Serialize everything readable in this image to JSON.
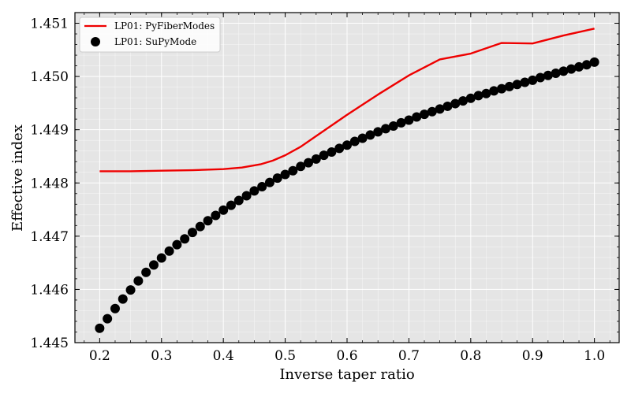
{
  "chart_data": {
    "type": "line",
    "title": "",
    "xlabel": "Inverse taper ratio",
    "ylabel": "Effective index",
    "xlim": [
      0.16,
      1.04
    ],
    "ylim": [
      1.445,
      1.4512
    ],
    "xticks": [
      0.2,
      0.3,
      0.4,
      0.5,
      0.6,
      0.7,
      0.8,
      0.9,
      1.0
    ],
    "xtick_labels": [
      "0.2",
      "0.3",
      "0.4",
      "0.5",
      "0.6",
      "0.7",
      "0.8",
      "0.9",
      "1.0"
    ],
    "yticks": [
      1.445,
      1.446,
      1.447,
      1.448,
      1.449,
      1.45,
      1.451
    ],
    "ytick_labels": [
      "1.445",
      "1.446",
      "1.447",
      "1.448",
      "1.449",
      "1.450",
      "1.451"
    ],
    "grid": true,
    "background": "#e5e5e5",
    "legend_position": "top-left",
    "series": [
      {
        "name": "LP01: PyFiberModes",
        "kind": "line",
        "color": "#ee0000",
        "x": [
          0.2,
          0.25,
          0.3,
          0.35,
          0.4,
          0.43,
          0.46,
          0.48,
          0.5,
          0.525,
          0.55,
          0.6,
          0.65,
          0.7,
          0.75,
          0.8,
          0.85,
          0.9,
          0.95,
          1.0
        ],
        "y": [
          1.44822,
          1.44822,
          1.44823,
          1.44824,
          1.44826,
          1.44829,
          1.44835,
          1.44842,
          1.44852,
          1.44868,
          1.44888,
          1.44928,
          1.44966,
          1.45002,
          1.45032,
          1.45043,
          1.45063,
          1.45062,
          1.45077,
          1.4509
        ]
      },
      {
        "name": "LP01: SuPyMode",
        "kind": "scatter",
        "color": "#000000",
        "x": [
          0.2,
          0.2125,
          0.225,
          0.2375,
          0.25,
          0.2625,
          0.275,
          0.2875,
          0.3,
          0.3125,
          0.325,
          0.3375,
          0.35,
          0.3625,
          0.375,
          0.3875,
          0.4,
          0.4125,
          0.425,
          0.4375,
          0.45,
          0.4625,
          0.475,
          0.4875,
          0.5,
          0.5125,
          0.525,
          0.5375,
          0.55,
          0.5625,
          0.575,
          0.5875,
          0.6,
          0.6125,
          0.625,
          0.6375,
          0.65,
          0.6625,
          0.675,
          0.6875,
          0.7,
          0.7125,
          0.725,
          0.7375,
          0.75,
          0.7625,
          0.775,
          0.7875,
          0.8,
          0.8125,
          0.825,
          0.8375,
          0.85,
          0.8625,
          0.875,
          0.8875,
          0.9,
          0.9125,
          0.925,
          0.9375,
          0.95,
          0.9625,
          0.975,
          0.9875,
          1.0
        ],
        "y": [
          1.44527,
          1.44545,
          1.44564,
          1.44582,
          1.44599,
          1.44616,
          1.44632,
          1.44646,
          1.44659,
          1.44672,
          1.44684,
          1.44695,
          1.44707,
          1.44718,
          1.44729,
          1.44739,
          1.44749,
          1.44758,
          1.44767,
          1.44776,
          1.44785,
          1.44793,
          1.44801,
          1.44809,
          1.44816,
          1.44823,
          1.44831,
          1.44838,
          1.44845,
          1.44852,
          1.44858,
          1.44865,
          1.44871,
          1.44878,
          1.44884,
          1.4489,
          1.44896,
          1.44902,
          1.44907,
          1.44913,
          1.44918,
          1.44924,
          1.44929,
          1.44934,
          1.44939,
          1.44944,
          1.44949,
          1.44954,
          1.44959,
          1.44964,
          1.44968,
          1.44973,
          1.44977,
          1.44981,
          1.44985,
          1.44989,
          1.44993,
          1.44998,
          1.45002,
          1.45006,
          1.4501,
          1.45014,
          1.45018,
          1.45022,
          1.45027
        ]
      }
    ]
  }
}
